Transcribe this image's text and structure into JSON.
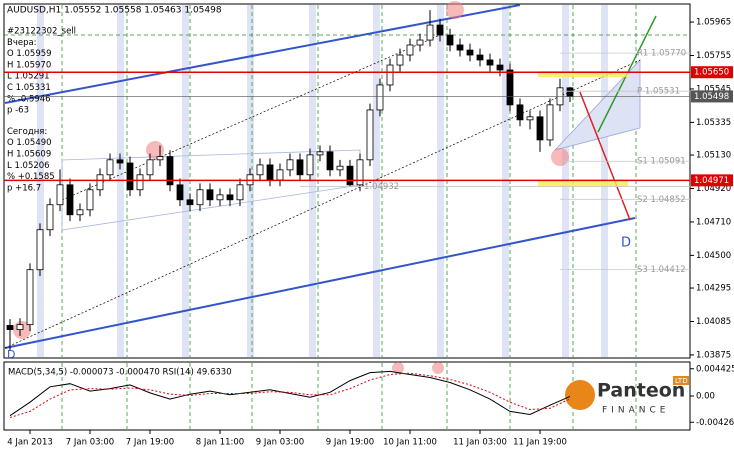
{
  "chart_data": {
    "type": "candlestick",
    "title": "AUDUSD,H1  1.05552 1.05558 1.05463 1.05498",
    "info": [
      "#23122302_sell",
      "Вчера:",
      "O 1.05959",
      "H 1.05970",
      "L 1.05291",
      "C 1.05331",
      "% -0.5946",
      "p -63",
      "Сегодня:",
      "O 1.05490",
      "H 1.05609",
      "L 1.05206",
      "% +0.1585",
      "p +16.7"
    ],
    "open": [
      1.0406,
      1.04034,
      1.04065,
      1.0441,
      1.04661,
      1.04818,
      1.04943,
      1.04755,
      1.04786,
      1.04912,
      1.05006,
      1.051,
      1.0508,
      1.04912,
      1.05006,
      1.051,
      1.0512,
      1.04943,
      1.04849,
      1.04818,
      1.04912,
      1.04849,
      1.0488,
      1.04849,
      1.04943,
      1.05006,
      1.05068,
      1.04974,
      1.05037,
      1.051,
      1.05006,
      1.05131,
      1.0515,
      1.05037,
      1.0506,
      1.04943,
      1.051,
      1.05413,
      1.0557,
      1.05695,
      1.05758,
      1.05821,
      1.05852,
      1.05946,
      1.05883,
      1.05821,
      1.05789,
      1.05758,
      1.05727,
      1.05695,
      1.05664,
      1.05445,
      1.05351,
      1.0537,
      1.05225,
      1.05445,
      1.05552
    ],
    "high": [
      1.041,
      1.04105,
      1.0445,
      1.04701,
      1.04858,
      1.0504,
      1.04983,
      1.04826,
      1.04952,
      1.05046,
      1.0514,
      1.0514,
      1.0512,
      1.05046,
      1.0514,
      1.0519,
      1.0516,
      1.04983,
      1.04889,
      1.04952,
      1.04952,
      1.0492,
      1.0492,
      1.04983,
      1.05046,
      1.05108,
      1.05108,
      1.05077,
      1.0514,
      1.0514,
      1.05171,
      1.0519,
      1.0519,
      1.051,
      1.051,
      1.0514,
      1.05453,
      1.0561,
      1.05735,
      1.05798,
      1.05861,
      1.05892,
      1.0604,
      1.05986,
      1.05923,
      1.05861,
      1.05829,
      1.05798,
      1.05767,
      1.05735,
      1.05704,
      1.05485,
      1.0541,
      1.0541,
      1.05485,
      1.05609,
      1.05558
    ],
    "low": [
      1.039,
      1.03994,
      1.04025,
      1.0437,
      1.04621,
      1.04778,
      1.04715,
      1.04715,
      1.04746,
      1.04872,
      1.04966,
      1.0504,
      1.04872,
      1.04872,
      1.04966,
      1.0506,
      1.04903,
      1.04809,
      1.04778,
      1.04778,
      1.04809,
      1.04809,
      1.04809,
      1.04809,
      1.04903,
      1.04966,
      1.04934,
      1.04934,
      1.04997,
      1.04966,
      1.04966,
      1.05091,
      1.04997,
      1.04997,
      1.04932,
      1.04903,
      1.0506,
      1.05373,
      1.0553,
      1.05655,
      1.05718,
      1.05781,
      1.05812,
      1.05843,
      1.05781,
      1.05749,
      1.05718,
      1.05687,
      1.05655,
      1.05624,
      1.05405,
      1.05311,
      1.05291,
      1.0515,
      1.05185,
      1.05405,
      1.05463
    ],
    "close": [
      1.04034,
      1.04065,
      1.0441,
      1.04661,
      1.04818,
      1.04943,
      1.04755,
      1.04786,
      1.04912,
      1.05006,
      1.051,
      1.0508,
      1.04912,
      1.05006,
      1.051,
      1.0512,
      1.04943,
      1.04849,
      1.04818,
      1.04912,
      1.04849,
      1.0488,
      1.04849,
      1.04943,
      1.05006,
      1.05068,
      1.04974,
      1.05037,
      1.051,
      1.05006,
      1.05131,
      1.0515,
      1.05037,
      1.0506,
      1.04943,
      1.051,
      1.05413,
      1.0557,
      1.05695,
      1.05758,
      1.05821,
      1.05852,
      1.05946,
      1.05883,
      1.05821,
      1.05789,
      1.05758,
      1.05727,
      1.05695,
      1.05664,
      1.05445,
      1.05351,
      1.0537,
      1.05225,
      1.05445,
      1.05552,
      1.05498
    ],
    "ylim": [
      1.03862,
      1.06072
    ],
    "yticks": [
      1.05965,
      1.05755,
      1.05545,
      1.05335,
      {
        "value": 1.0513,
        "label": "1.05130"
      },
      {
        "value": 1.0492,
        "label": "1.04920"
      },
      {
        "value": 1.0471,
        "label": "1.04710"
      },
      {
        "value": 1.045,
        "label": "1.04500"
      },
      1.04295,
      1.04085,
      1.03875
    ],
    "xticks": [
      {
        "value": 2,
        "label": "4 Jan 2013"
      },
      {
        "value": 8,
        "label": "7 Jan 03:00"
      },
      {
        "value": 14,
        "label": "7 Jan 19:00"
      },
      {
        "value": 21,
        "label": "8 Jan 11:00"
      },
      {
        "value": 27,
        "label": "9 Jan 03:00"
      },
      {
        "value": 34,
        "label": "9 Jan 19:00"
      },
      {
        "value": 40,
        "label": "10 Jan 11:00"
      },
      {
        "value": 47,
        "label": "11 Jan 03:00"
      },
      {
        "value": 53,
        "label": "11 Jan 19:00"
      }
    ],
    "price_lines": [
      {
        "value": 1.0565,
        "label": "1.05650",
        "color": "#e00000"
      },
      {
        "value": 1.05498,
        "label": "1.05498",
        "color": "#555555"
      },
      {
        "value": 1.04971,
        "label": "1.04971",
        "color": "#e00000"
      }
    ],
    "pivots": [
      {
        "value": 1.0577,
        "label": "R1 1.05770"
      },
      {
        "value": 1.05531,
        "label": "P 1.05531"
      },
      {
        "value": 1.05091,
        "label": "S1 1.05091"
      },
      {
        "value": 1.04852,
        "label": "S2 1.04852"
      },
      {
        "value": 1.04412,
        "label": "S3 1.04412"
      },
      {
        "value": 1.04932,
        "label": "1.04932"
      }
    ],
    "markers": [
      "D",
      "D"
    ],
    "indicator": {
      "label": "MACD(5,34,5) -0.000073 -0.000470 RSI(14) 49.6330",
      "ylim": [
        -0.0052,
        0.0052
      ],
      "yticks": [
        0.004425,
        {
          "value": 0,
          "label": "0.00"
        },
        -0.004266
      ],
      "series": [
        {
          "name": "MACD",
          "color": "#000000",
          "values": [
            -0.0032,
            -0.001,
            0.0015,
            0.002,
            0.0008,
            0.0012,
            0.0018,
            0.0005,
            -0.0005,
            0.0003,
            0.0008,
            0.0002,
            0.0006,
            0.001,
            0.0004,
            -0.0002,
            0.0006,
            0.0025,
            0.0038,
            0.004,
            0.0035,
            0.003,
            0.0022,
            0.001,
            -0.0005,
            -0.0025,
            -0.003,
            -0.0015,
            -7.3e-05
          ]
        },
        {
          "name": "Signal",
          "color": "#e00000",
          "values": [
            -0.0035,
            -0.0025,
            -0.0005,
            0.001,
            0.0012,
            0.0011,
            0.0013,
            0.001,
            0.0003,
            0.0001,
            0.0004,
            0.0004,
            0.0004,
            0.0007,
            0.0006,
            0.0002,
            0.0002,
            0.0012,
            0.0026,
            0.0035,
            0.0037,
            0.0033,
            0.0027,
            0.0018,
            0.0006,
            -0.001,
            -0.0022,
            -0.002,
            -0.00047
          ]
        }
      ]
    }
  },
  "logo": {
    "name": "Panteon",
    "sub": "FINANCE",
    "badge": "LTD"
  }
}
